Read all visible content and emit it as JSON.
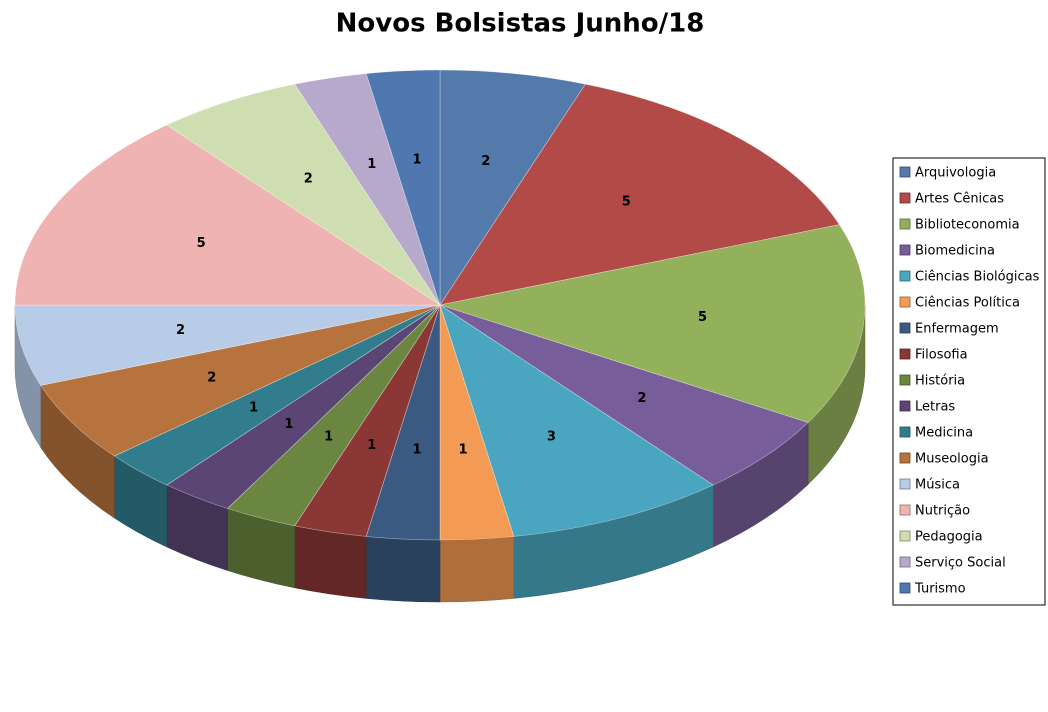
{
  "chart_data": {
    "type": "pie",
    "title": "Novos Bolsistas Junho/18",
    "categories": [
      "Arquivologia",
      "Artes Cênicas",
      "Biblioteconomia",
      "Biomedicina",
      "Ciências Biológicas",
      "Ciências Política",
      "Enfermagem",
      "Filosofia",
      "História",
      "Letras",
      "Medicina",
      "Museologia",
      "Música",
      "Nutrição",
      "Pedagogia",
      "Serviço Social",
      "Turismo"
    ],
    "values": [
      2,
      5,
      5,
      2,
      3,
      1,
      1,
      1,
      1,
      1,
      1,
      2,
      2,
      5,
      2,
      1,
      1
    ],
    "colors": [
      "#5479ab",
      "#b24a47",
      "#93b05a",
      "#775d99",
      "#4aa6c0",
      "#f39a54",
      "#3b5a82",
      "#8a3735",
      "#6a8640",
      "#5b4575",
      "#317d8e",
      "#b7733d",
      "#b8cce8",
      "#efb3b1",
      "#cfdeb1",
      "#b7a9cb",
      "#4f78b0"
    ],
    "legend": "right"
  }
}
